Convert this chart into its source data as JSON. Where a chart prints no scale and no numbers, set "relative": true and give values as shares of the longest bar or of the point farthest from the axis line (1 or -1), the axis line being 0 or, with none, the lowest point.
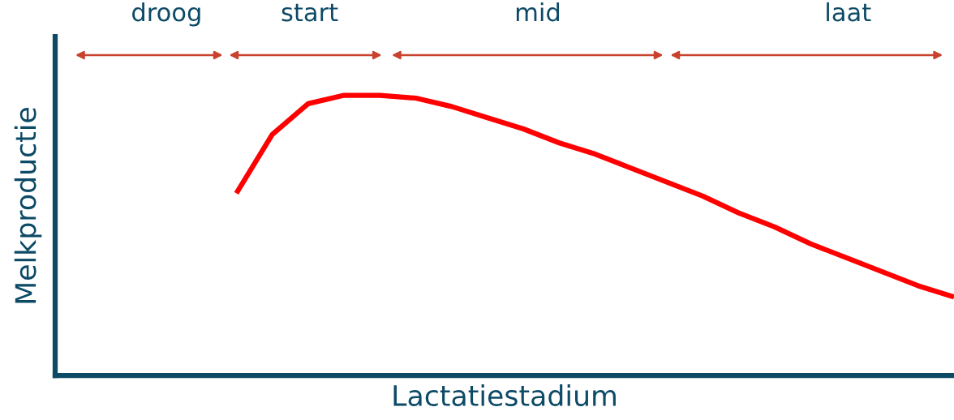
{
  "chart_data": {
    "type": "line",
    "relative": true,
    "xlabel": "Lactatiestadium",
    "ylabel": "Melkproductie",
    "categories": [
      null,
      null,
      null,
      null,
      null,
      null,
      null,
      null,
      null,
      null,
      null,
      null,
      null,
      null,
      null,
      null,
      null,
      null,
      null,
      null,
      null,
      null,
      null,
      null,
      null,
      null
    ],
    "series": [
      {
        "color": "#ff0000",
        "values": [
          null,
          null,
          null,
          null,
          null,
          0.65,
          0.86,
          0.97,
          1.0,
          1.0,
          0.99,
          0.96,
          0.92,
          0.88,
          0.83,
          0.79,
          0.74,
          0.69,
          0.64,
          0.58,
          0.53,
          0.47,
          0.42,
          0.37,
          0.32,
          0.28
        ]
      }
    ],
    "annotations": [
      "droog",
      "start",
      "mid",
      "laat"
    ],
    "marker": "none",
    "line_style": "solid",
    "tick_labels": false
  }
}
